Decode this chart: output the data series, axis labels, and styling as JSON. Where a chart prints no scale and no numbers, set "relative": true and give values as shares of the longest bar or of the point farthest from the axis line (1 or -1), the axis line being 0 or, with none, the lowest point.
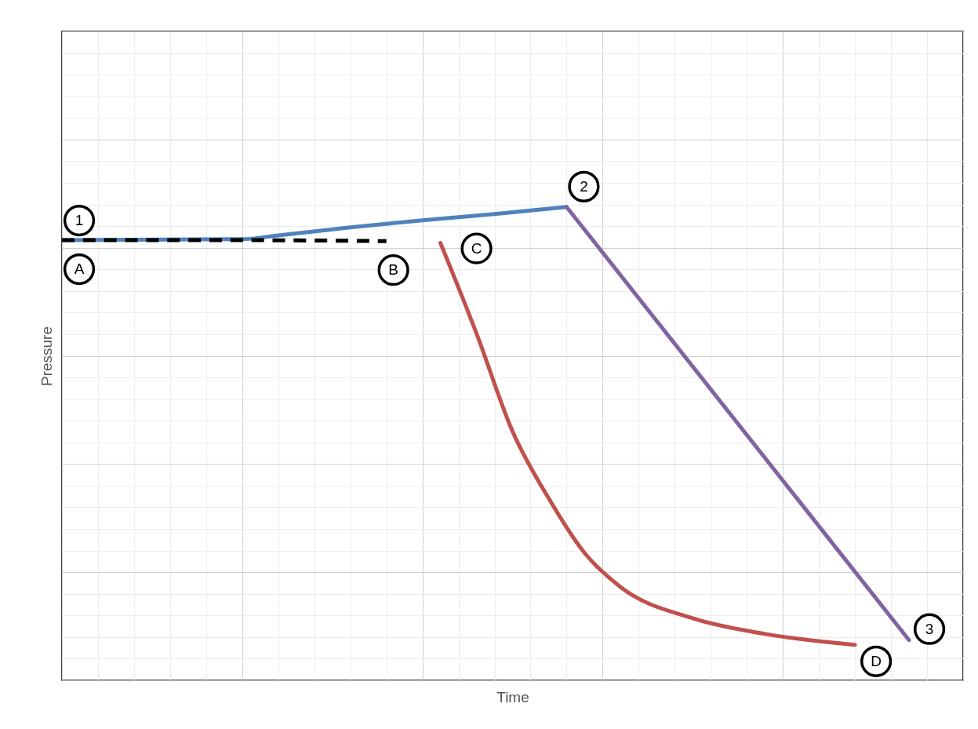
{
  "chart_data": {
    "type": "line",
    "xlabel": "Time",
    "ylabel": "Pressure",
    "relative": true,
    "grid": true,
    "categories": [
      null,
      null,
      null,
      null,
      null,
      null,
      null,
      null,
      null,
      null,
      null,
      null,
      null,
      null,
      null,
      null,
      null,
      null,
      null,
      null,
      null,
      null,
      null,
      null,
      null,
      null,
      null,
      null,
      null,
      null,
      null,
      null,
      null,
      null,
      null,
      null,
      null,
      null,
      null,
      null,
      null,
      null,
      null,
      null,
      null,
      null,
      null,
      null,
      null,
      null,
      null
    ],
    "series": [
      {
        "color": "#4f81bd",
        "line_style": "solid",
        "values": [
          0.93,
          null,
          null,
          null,
          null,
          null,
          null,
          null,
          null,
          null,
          0.932,
          null,
          0.94,
          null,
          null,
          null,
          0.957,
          null,
          null,
          null,
          0.972,
          null,
          null,
          null,
          0.985,
          null,
          null,
          null,
          1,
          null,
          null,
          null,
          null,
          null,
          null,
          null,
          null,
          null,
          null,
          null,
          null,
          null,
          null,
          null,
          null,
          null,
          null,
          null,
          null,
          null,
          null
        ]
      },
      {
        "color": "#000000",
        "line_style": "dashed",
        "values": [
          0.93,
          null,
          null,
          null,
          null,
          null,
          null,
          null,
          null,
          0.93,
          null,
          null,
          null,
          null,
          null,
          null,
          null,
          null,
          0.928,
          null,
          null,
          null,
          null,
          null,
          null,
          null,
          null,
          null,
          null,
          null,
          null,
          null,
          null,
          null,
          null,
          null,
          null,
          null,
          null,
          null,
          null,
          null,
          null,
          null,
          null,
          null,
          null,
          null,
          null,
          null,
          null
        ]
      },
      {
        "color": "#8064a2",
        "line_style": "solid",
        "values": [
          null,
          null,
          null,
          null,
          null,
          null,
          null,
          null,
          null,
          null,
          null,
          null,
          null,
          null,
          null,
          null,
          null,
          null,
          null,
          null,
          null,
          null,
          null,
          null,
          null,
          null,
          null,
          null,
          1,
          null,
          null,
          null,
          null,
          null,
          null,
          null,
          null,
          null,
          null,
          null,
          null,
          null,
          null,
          null,
          null,
          null,
          null,
          0.085,
          null,
          null,
          null
        ]
      },
      {
        "color": "#c0504d",
        "line_style": "solid",
        "values": [
          null,
          null,
          null,
          null,
          null,
          null,
          null,
          null,
          null,
          null,
          null,
          null,
          null,
          null,
          null,
          null,
          null,
          null,
          null,
          null,
          null,
          0.924,
          null,
          0.733,
          null,
          0.526,
          null,
          0.385,
          null,
          0.269,
          null,
          0.197,
          null,
          null,
          null,
          0.131,
          null,
          null,
          null,
          0.098,
          null,
          null,
          null,
          null,
          0.075,
          null,
          null,
          null,
          null,
          null,
          null
        ]
      }
    ],
    "annotations": [
      "1",
      "2",
      "3",
      "A",
      "B",
      "C",
      "D"
    ]
  }
}
